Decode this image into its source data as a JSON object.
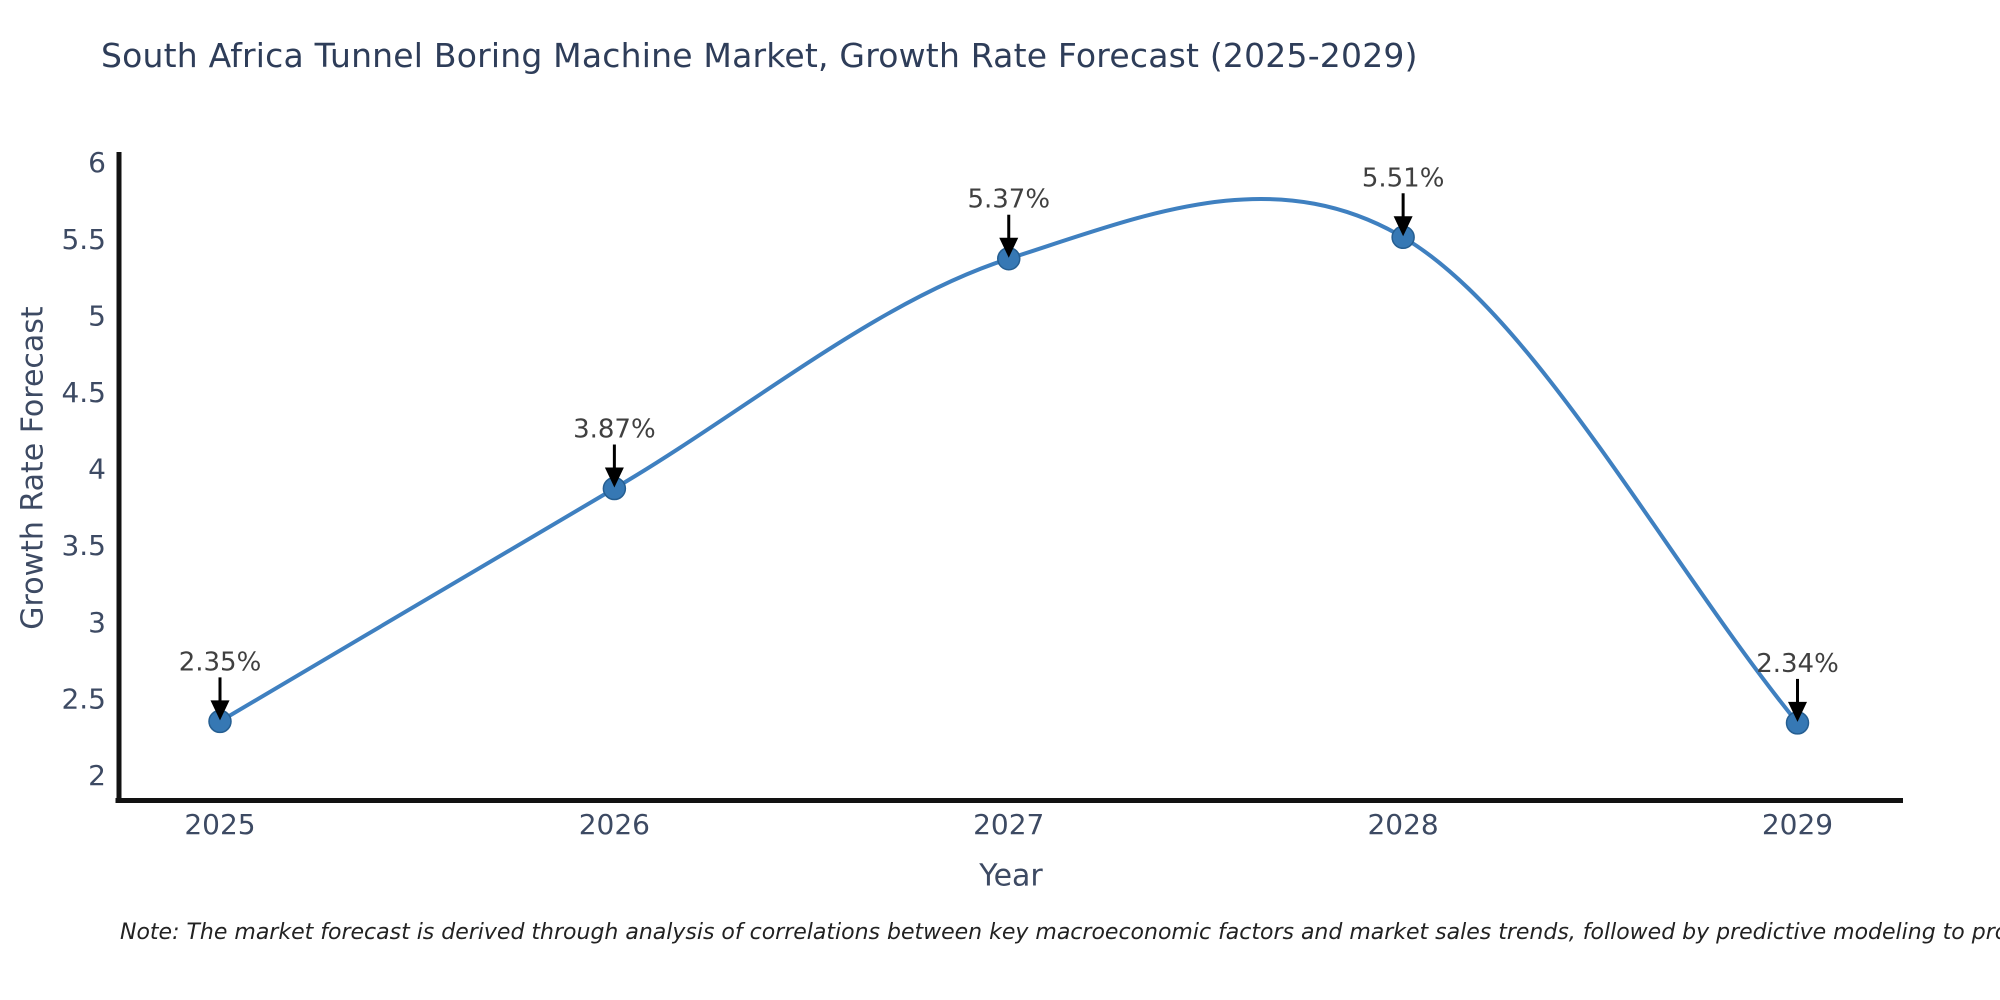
{
  "chart_data": {
    "type": "line",
    "title": "South Africa Tunnel Boring Machine Market, Growth Rate Forecast (2025-2029)",
    "xlabel": "Year",
    "ylabel": "Growth Rate Forecast",
    "categories": [
      "2025",
      "2026",
      "2027",
      "2028",
      "2029"
    ],
    "values": [
      2.35,
      3.87,
      5.37,
      5.51,
      2.34
    ],
    "point_labels": [
      "2.35%",
      "3.87%",
      "5.37%",
      "5.51%",
      "2.34%"
    ],
    "ytick_labels": [
      "2",
      "2.5",
      "3",
      "3.5",
      "4",
      "4.5",
      "5",
      "5.5",
      "6"
    ],
    "ytick_values": [
      2,
      2.5,
      3,
      3.5,
      4,
      4.5,
      5,
      5.5,
      6
    ],
    "ylim": [
      2,
      6
    ],
    "grid": false,
    "legend": "none",
    "curve_style": "smooth-spline",
    "colors": {
      "line": "#3f80c0",
      "marker_fill": "#3678b4",
      "marker_edge": "#255e91",
      "axis_spine": "#121212",
      "tick_label": "#3d4a63",
      "title": "#2e3d59",
      "annotation_text": "#404040",
      "annotation_arrow": "#000000",
      "note_text": "#222222"
    }
  },
  "note": "Note: The market forecast is derived through analysis of correlations between key macroeconomic factors and market sales trends, followed by predictive modeling to project future sales"
}
